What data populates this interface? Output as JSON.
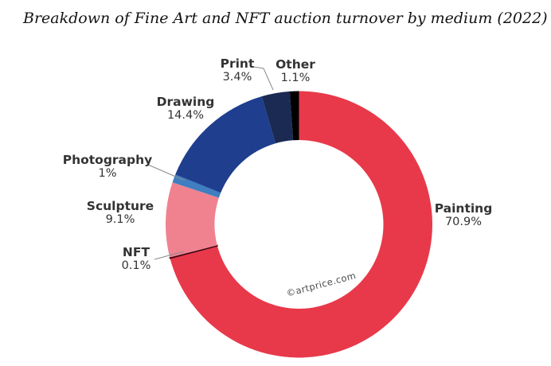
{
  "title": "Breakdown of Fine Art and NFT auction turnover by medium (2022)",
  "watermark": "©artprice.com",
  "chart_data": {
    "type": "pie",
    "subtype": "donut",
    "title": "Breakdown of Fine Art and NFT auction turnover by medium (2022)",
    "unit": "%",
    "start_angle_deg": -90,
    "direction": "clockwise",
    "inner_radius_ratio": 0.63,
    "legend_position": "outside-labels",
    "segments": [
      {
        "key": "painting",
        "label": "Painting",
        "value": 70.9,
        "pct_label": "70.9%",
        "color": "#e8394a"
      },
      {
        "key": "nft",
        "label": "NFT",
        "value": 0.1,
        "pct_label": "0.1%",
        "color": "#33050f"
      },
      {
        "key": "sculpture",
        "label": "Sculpture",
        "value": 9.1,
        "pct_label": "9.1%",
        "color": "#f08290"
      },
      {
        "key": "photography",
        "label": "Photography",
        "value": 1,
        "pct_label": "1%",
        "color": "#3e7ec1"
      },
      {
        "key": "drawing",
        "label": "Drawing",
        "value": 14.4,
        "pct_label": "14.4%",
        "color": "#1f3e8e"
      },
      {
        "key": "print",
        "label": "Print",
        "value": 3.4,
        "pct_label": "3.4%",
        "color": "#1a2a52"
      },
      {
        "key": "other",
        "label": "Other",
        "value": 1.1,
        "pct_label": "1.1%",
        "color": "#000000"
      }
    ],
    "leader_line_color": "#8a8a8a"
  }
}
